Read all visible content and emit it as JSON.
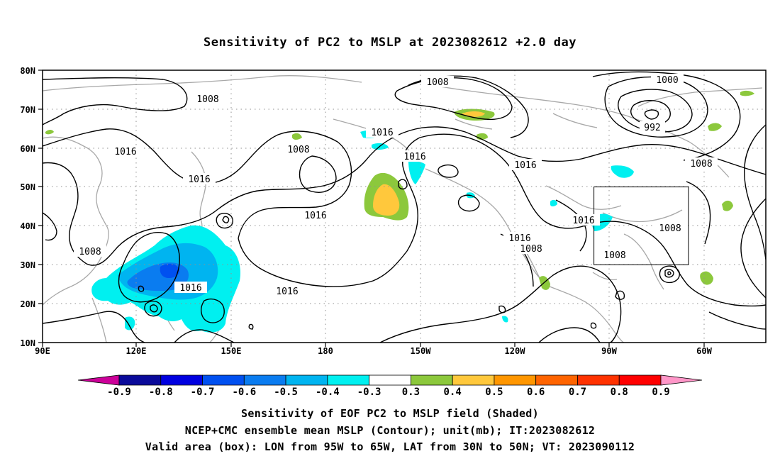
{
  "title": "Sensitivity of PC2 to MSLP at 2023082612 +2.0 day",
  "lat_labels": [
    "80N",
    "70N",
    "60N",
    "50N",
    "40N",
    "30N",
    "20N",
    "10N"
  ],
  "lon_labels": [
    "90E",
    "120E",
    "150E",
    "180",
    "150W",
    "120W",
    "90W",
    "60W"
  ],
  "contour_labels": [
    "1008",
    "1008",
    "1000",
    "992",
    "1016",
    "1016",
    "1008",
    "1016",
    "1016",
    "1008",
    "1016",
    "1016",
    "1016",
    "1008",
    "1016",
    "1008",
    "1008",
    "1008",
    "1016"
  ],
  "colorbar": {
    "labels": [
      "-0.9",
      "-0.8",
      "-0.7",
      "-0.6",
      "-0.5",
      "-0.4",
      "-0.3",
      "0.3",
      "0.4",
      "0.5",
      "0.6",
      "0.7",
      "0.8",
      "0.9"
    ],
    "colors": [
      "#cc0099",
      "#0a0a9a",
      "#0000e0",
      "#0050f0",
      "#0a7cf0",
      "#00b4f0",
      "#00f0f0",
      "#ffffff",
      "#8cc83c",
      "#ffc83c",
      "#ff9600",
      "#ff6400",
      "#ff3200",
      "#ff0000",
      "#ff96c8"
    ]
  },
  "valid_box": {
    "lon_west": -95,
    "lon_east": -65,
    "lat_south": 30,
    "lat_north": 50
  },
  "captions": [
    "Sensitivity of EOF PC2 to MSLP field (Shaded)",
    "NCEP+CMC ensemble mean MSLP (Contour); unit(mb); IT:2023082612",
    "Valid area (box): LON from 95W to 65W, LAT from 30N to 50N; VT: 2023090112"
  ]
}
